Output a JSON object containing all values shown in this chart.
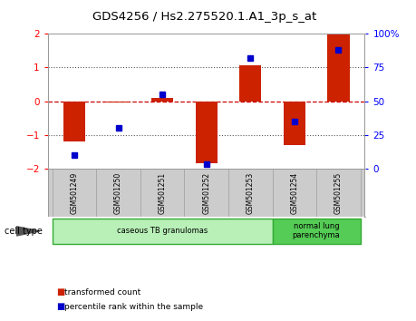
{
  "title": "GDS4256 / Hs2.275520.1.A1_3p_s_at",
  "samples": [
    "GSM501249",
    "GSM501250",
    "GSM501251",
    "GSM501252",
    "GSM501253",
    "GSM501254",
    "GSM501255"
  ],
  "red_values": [
    -1.2,
    -0.05,
    0.1,
    -1.85,
    1.05,
    -1.3,
    2.0
  ],
  "blue_values_raw": [
    10,
    30,
    55,
    3,
    82,
    35,
    88
  ],
  "red_ylim": [
    -2,
    2
  ],
  "red_yticks": [
    -2,
    -1,
    0,
    1,
    2
  ],
  "blue_yticks": [
    0,
    25,
    50,
    75,
    100
  ],
  "blue_ytick_labels": [
    "0",
    "25",
    "50",
    "75",
    "100%"
  ],
  "groups": [
    {
      "label": "caseous TB granulomas",
      "indices": [
        0,
        1,
        2,
        3,
        4
      ],
      "color": "#b8f0b8"
    },
    {
      "label": "normal lung\nparenchyma",
      "indices": [
        5,
        6
      ],
      "color": "#55cc55"
    }
  ],
  "cell_type_label": "cell type",
  "legend_red": "transformed count",
  "legend_blue": "percentile rank within the sample",
  "bar_color": "#cc2200",
  "dot_color": "#0000cc",
  "bar_width": 0.5,
  "hline_red_color": "#cc0000",
  "dotted_line_color": "#555555",
  "bg_color": "#ffffff",
  "plot_bg": "#ffffff",
  "sample_box_color": "#cccccc",
  "sample_box_edge": "#aaaaaa"
}
